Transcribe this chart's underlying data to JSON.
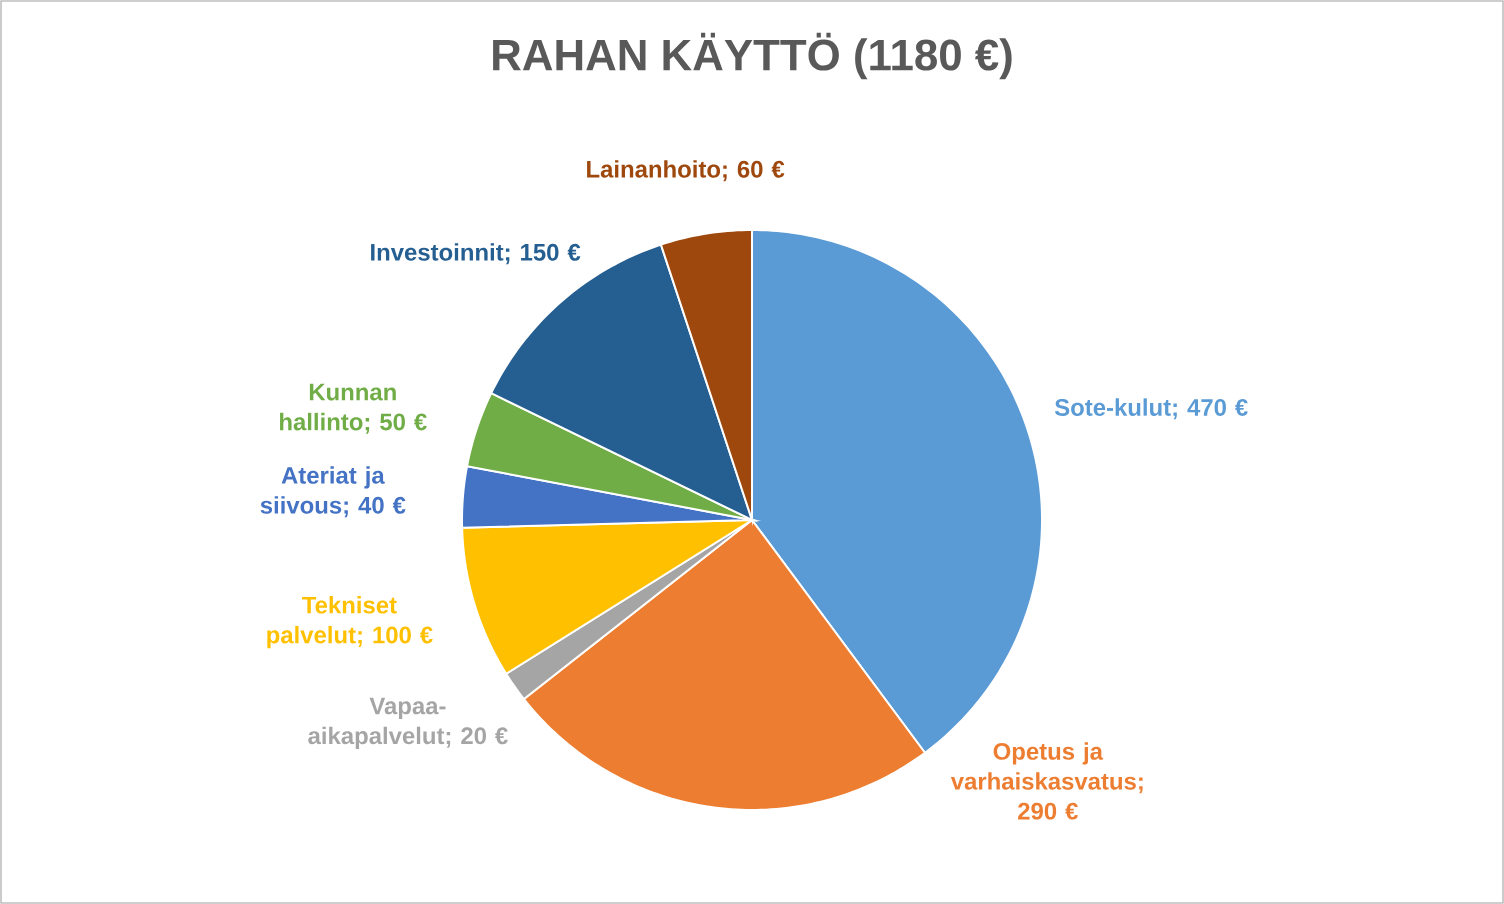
{
  "chart_data": {
    "type": "pie",
    "title": "RAHAN KÄYTTÖ (1180 €)",
    "categories": [
      "Sote-kulut",
      "Opetus ja varhaiskasvatus",
      "Vapaa-aikapalvelut",
      "Tekniset palvelut",
      "Ateriat ja siivous",
      "Kunnan hallinto",
      "Investoinnit",
      "Lainanhoito"
    ],
    "values": [
      470,
      290,
      20,
      100,
      40,
      50,
      150,
      60
    ],
    "value_labels": [
      "; 470 €",
      "; 290 €",
      "; 20 €",
      "; 100 €",
      "; 40 €",
      "; 50 €",
      "; 150 €",
      "; 60 €"
    ],
    "colors": [
      "#5b9bd5",
      "#ed7d31",
      "#a5a5a5",
      "#ffc000",
      "#4472c4",
      "#70ad47",
      "#255e91",
      "#9e480e"
    ]
  }
}
